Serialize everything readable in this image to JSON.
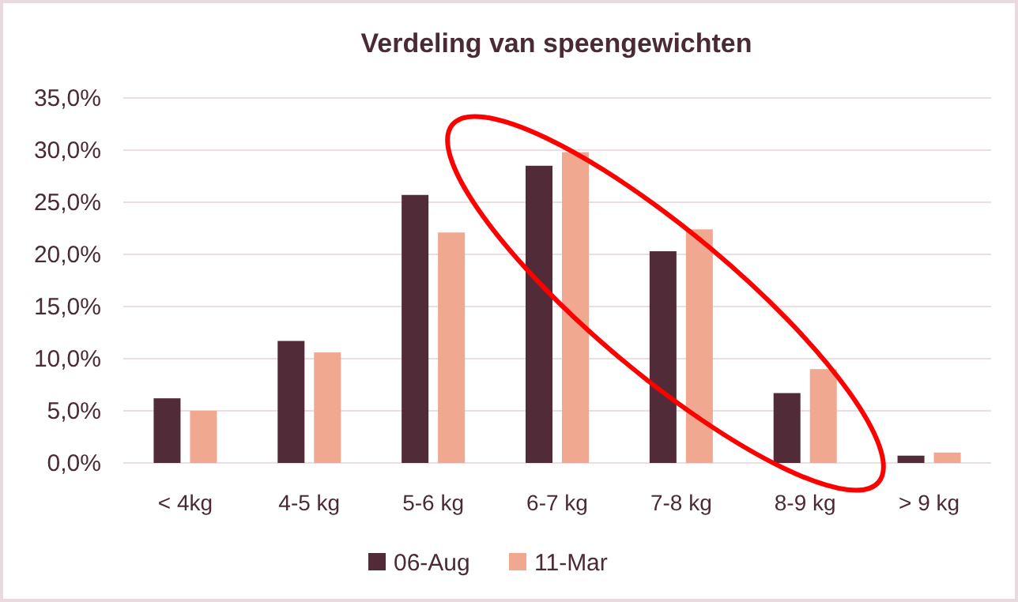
{
  "chart_data": {
    "type": "bar",
    "title": "Verdeling van speengewichten",
    "categories": [
      "< 4kg",
      "4-5 kg",
      "5-6 kg",
      "6-7 kg",
      "7-8 kg",
      "8-9 kg",
      "> 9 kg"
    ],
    "series": [
      {
        "name": "06-Aug",
        "color": "#512b37",
        "values": [
          6.2,
          11.7,
          25.7,
          28.5,
          20.3,
          6.7,
          0.7
        ]
      },
      {
        "name": "11-Mar",
        "color": "#f0a891",
        "values": [
          5.0,
          10.6,
          22.1,
          29.8,
          22.4,
          9.0,
          1.0
        ]
      }
    ],
    "ylim": [
      0,
      35
    ],
    "yticks": [
      {
        "value": 0,
        "label": "0,0%"
      },
      {
        "value": 5,
        "label": "5,0%"
      },
      {
        "value": 10,
        "label": "10,0%"
      },
      {
        "value": 15,
        "label": "15,0%"
      },
      {
        "value": 20,
        "label": "20,0%"
      },
      {
        "value": 25,
        "label": "25,0%"
      },
      {
        "value": 30,
        "label": "30,0%"
      },
      {
        "value": 35,
        "label": "35,0%"
      }
    ],
    "grid": "y",
    "legend": "bottom"
  }
}
